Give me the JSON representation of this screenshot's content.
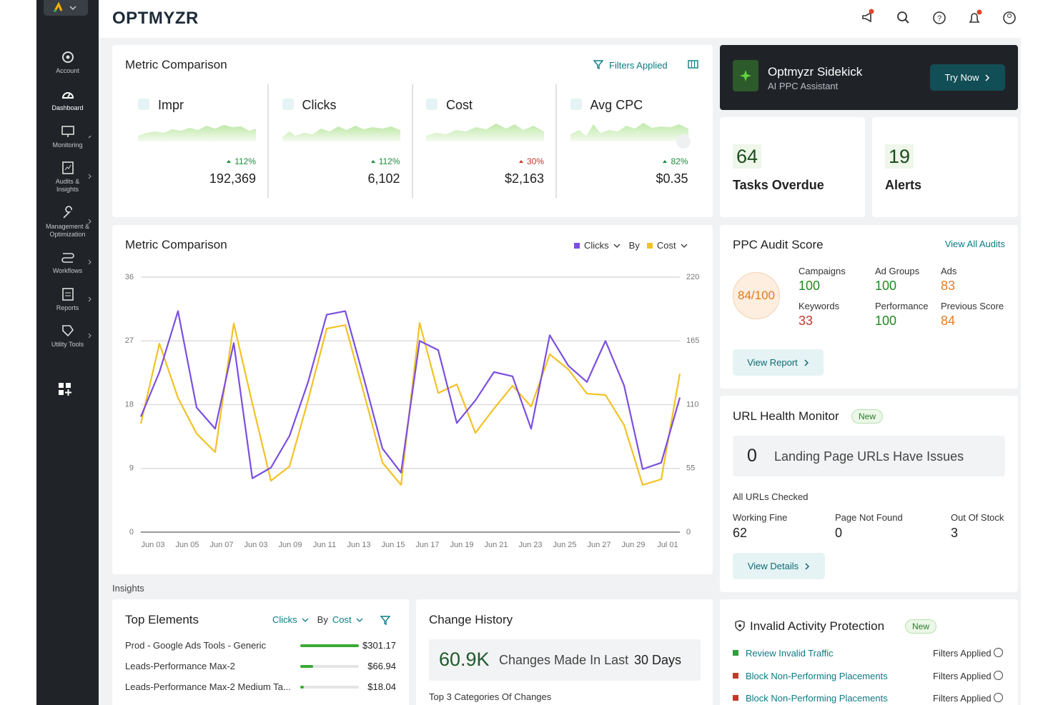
{
  "header": {
    "logo": "OPTMYZR"
  },
  "sidebar": {
    "items": [
      "Account",
      "Dashboard",
      "Monitoring",
      "Audits & Insights",
      "Management & Optimization",
      "Workflows",
      "Reports",
      "Utility Tools"
    ]
  },
  "metrics_card": {
    "title": "Metric Comparison",
    "filters": "Filters Applied",
    "metrics": [
      {
        "name": "Impr",
        "change": "112%",
        "value": "192,369",
        "color": "#1e8a3c"
      },
      {
        "name": "Clicks",
        "change": "112%",
        "value": "6,102",
        "color": "#1e8a3c"
      },
      {
        "name": "Cost",
        "change": "30%",
        "value": "$2,163",
        "color": "#c0392b"
      },
      {
        "name": "Avg CPC",
        "change": "82%",
        "value": "$0.35",
        "color": "#1e8a3c"
      }
    ]
  },
  "sidekick": {
    "title": "Optmyzr Sidekick",
    "subtitle": "AI PPC Assistant",
    "button": "Try Now"
  },
  "tasks": {
    "value": "64",
    "label": "Tasks Overdue"
  },
  "alerts": {
    "value": "19",
    "label": "Alerts"
  },
  "chart_data": {
    "type": "line",
    "title": "Metric Comparison",
    "by": "By",
    "x_labels": [
      "Jun 03",
      "Jun 05",
      "Jun 07",
      "Jun 03",
      "Jun 09",
      "Jun 11",
      "Jun 13",
      "Jun 15",
      "Jun 17",
      "Jun 19",
      "Jun 21",
      "Jun 23",
      "Jun 25",
      "Jun 27",
      "Jun 29",
      "Jul 01"
    ],
    "series": [
      {
        "name": "Clicks",
        "color": "#7b4fe0",
        "values": [
          16.3,
          22.6,
          31.2,
          17.6,
          14.6,
          26.7,
          7.6,
          9.1,
          13.6,
          21.2,
          30.7,
          31.2,
          21.7,
          11.8,
          8.4,
          27.0,
          25.7,
          15.4,
          18.6,
          22.6,
          22.0,
          14.6,
          27.8,
          23.5,
          21.2,
          27.0,
          20.7,
          8.9,
          9.8,
          19.0
        ]
      },
      {
        "name": "Cost",
        "color": "#f2c224",
        "axis": "y2",
        "values": [
          93.7,
          162.7,
          115.8,
          85.0,
          69.0,
          180.0,
          111.0,
          44.4,
          56.7,
          114.0,
          175.6,
          178.7,
          120.0,
          60.0,
          40.7,
          180.5,
          120.0,
          127.5,
          85.6,
          106.6,
          126.3,
          108.4,
          153.4,
          140.5,
          119.5,
          118.3,
          92.4,
          40.7,
          45.6,
          136.8
        ]
      }
    ],
    "ylim": [
      0,
      36
    ],
    "yticks": [
      0,
      9,
      18,
      27,
      36
    ],
    "y2lim": [
      0,
      220
    ],
    "y2ticks": [
      0,
      55,
      110,
      165,
      220
    ],
    "grid": true
  },
  "audit": {
    "title": "PPC Audit Score",
    "link": "View All Audits",
    "score": "84/100",
    "items": [
      {
        "label": "Campaigns",
        "value": "100",
        "color": "#1e8a1e"
      },
      {
        "label": "Ad Groups",
        "value": "100",
        "color": "#1e8a1e"
      },
      {
        "label": "Ads",
        "value": "83",
        "color": "#e67e22"
      },
      {
        "label": "Keywords",
        "value": "33",
        "color": "#c0392b"
      },
      {
        "label": "Performance",
        "value": "100",
        "color": "#1e8a1e"
      },
      {
        "label": "Previous Score",
        "value": "84",
        "color": "#e67e22"
      }
    ],
    "button": "View Report"
  },
  "url_health": {
    "title": "URL Health Monitor",
    "badge": "New",
    "count": "0",
    "text": "Landing Page URLs Have Issues",
    "checked": "All URLs Checked",
    "stats": [
      {
        "label": "Working Fine",
        "value": "62"
      },
      {
        "label": "Page Not Found",
        "value": "0"
      },
      {
        "label": "Out Of Stock",
        "value": "3"
      }
    ],
    "button": "View Details"
  },
  "insights": "Insights",
  "top_elements": {
    "title": "Top Elements",
    "metric": "Clicks",
    "by": "By",
    "metric2": "Cost",
    "rows": [
      {
        "name": "Prod - Google Ads Tools - Generic",
        "value": 301.17,
        "value_label": "$301.17"
      },
      {
        "name": "Leads-Performance Max-2",
        "value": 66.94,
        "value_label": "$66.94"
      },
      {
        "name": "Leads-Performance Max-2 Medium Ta...",
        "value": 18.04,
        "value_label": "$18.04"
      }
    ]
  },
  "change_history": {
    "title": "Change History",
    "value": "60.9K",
    "text": "Changes Made In Last",
    "period": "30 Days",
    "sub": "Top 3 Categories Of Changes"
  },
  "invalid_activity": {
    "title": "Invalid Activity Protection",
    "badge": "New",
    "rows": [
      {
        "name": "Review Invalid Traffic",
        "status": "Filters Applied",
        "color": "#2e9e3e"
      },
      {
        "name": "Block Non-Performing Placements",
        "status": "Filters Applied",
        "color": "#c0392b"
      },
      {
        "name": "Block Non-Performing Placements",
        "status": "Filters Applied",
        "color": "#c0392b"
      }
    ]
  }
}
